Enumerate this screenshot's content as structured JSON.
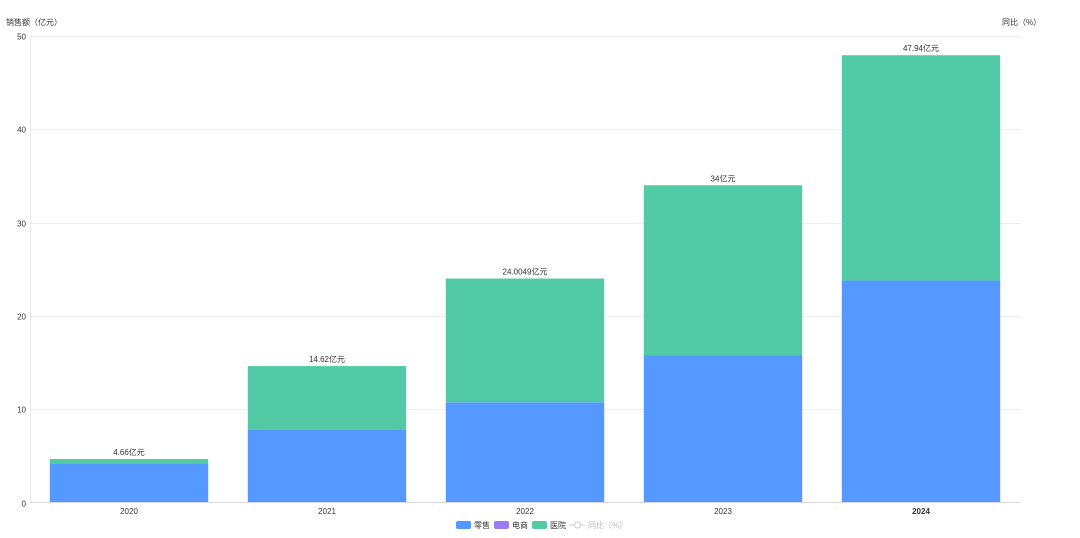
{
  "chart_data": {
    "type": "bar",
    "stacked": true,
    "categories": [
      "2020",
      "2021",
      "2022",
      "2023",
      "2024"
    ],
    "series": [
      {
        "name": "零售",
        "color": "#5598ff",
        "values": [
          4.21,
          7.84,
          10.74,
          15.8,
          23.8
        ]
      },
      {
        "name": "电商",
        "color": "#9b7cf4",
        "values": [
          0,
          0,
          0,
          0,
          0
        ]
      },
      {
        "name": "医院",
        "color": "#52cba5",
        "values": [
          0.45,
          6.78,
          13.2649,
          18.2,
          24.14
        ]
      }
    ],
    "total_labels": [
      "4.66亿元",
      "14.62亿元",
      "24.0049亿元",
      "34亿元",
      "47.94亿元"
    ],
    "line_series": {
      "name": "同比（%）",
      "color": "#cccccc",
      "values": []
    },
    "ylabel_left": "销售额（亿元）",
    "ylabel_right": "同比（%）",
    "ylim": [
      0,
      50
    ],
    "yticks": [
      0,
      10,
      20,
      30,
      40,
      50
    ],
    "grid": true,
    "legend_position": "bottom-center",
    "highlighted_category": "2024"
  }
}
